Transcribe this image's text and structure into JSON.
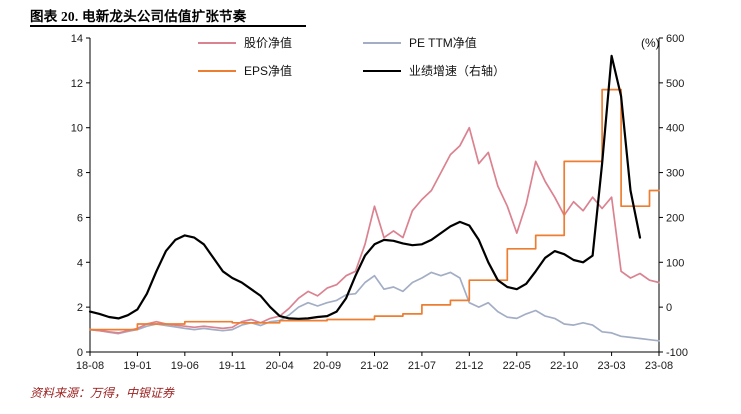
{
  "title": "图表 20. 电新龙头公司估值扩张节奏",
  "footer": {
    "text": "资料来源：万得，中银证券"
  },
  "chart_data": {
    "type": "line",
    "title": "电新龙头公司估值扩张节奏",
    "x_interval": "monthly",
    "x_ticks": [
      {
        "i": 0,
        "label": "18-08"
      },
      {
        "i": 5,
        "label": "19-01"
      },
      {
        "i": 10,
        "label": "19-06"
      },
      {
        "i": 15,
        "label": "19-11"
      },
      {
        "i": 20,
        "label": "20-04"
      },
      {
        "i": 25,
        "label": "20-09"
      },
      {
        "i": 30,
        "label": "21-02"
      },
      {
        "i": 35,
        "label": "21-07"
      },
      {
        "i": 40,
        "label": "21-12"
      },
      {
        "i": 45,
        "label": "22-05"
      },
      {
        "i": 50,
        "label": "22-10"
      },
      {
        "i": 55,
        "label": "23-03"
      },
      {
        "i": 60,
        "label": "23-08"
      }
    ],
    "left_axis": {
      "range": [
        0,
        14
      ],
      "ticks": [
        0,
        2,
        4,
        6,
        8,
        10,
        12,
        14
      ]
    },
    "right_axis": {
      "range": [
        -100,
        600
      ],
      "ticks": [
        -100,
        0,
        100,
        200,
        300,
        400,
        500,
        600
      ],
      "unit": "(%)"
    },
    "legend_position": "top-inside",
    "grid": false,
    "series": [
      {
        "name": "股价净值",
        "color": "#db8290",
        "axis": "left",
        "width": 1.7,
        "step": false,
        "values": [
          1.0,
          0.95,
          0.9,
          0.85,
          0.95,
          1.05,
          1.25,
          1.35,
          1.25,
          1.2,
          1.15,
          1.1,
          1.15,
          1.1,
          1.05,
          1.1,
          1.35,
          1.45,
          1.3,
          1.5,
          1.6,
          1.95,
          2.4,
          2.7,
          2.5,
          2.85,
          3.0,
          3.4,
          3.6,
          4.8,
          6.5,
          5.1,
          5.4,
          5.1,
          6.3,
          6.8,
          7.2,
          8.0,
          8.8,
          9.2,
          10.0,
          8.4,
          8.9,
          7.4,
          6.5,
          5.3,
          6.6,
          8.5,
          7.6,
          6.9,
          6.1,
          6.7,
          6.3,
          6.9,
          6.4,
          6.9,
          3.6,
          3.3,
          3.5,
          3.2,
          3.1
        ]
      },
      {
        "name": "PE TTM净值",
        "color": "#a3aec5",
        "axis": "left",
        "width": 1.7,
        "step": false,
        "values": [
          1.0,
          0.95,
          0.88,
          0.82,
          0.92,
          1.0,
          1.15,
          1.25,
          1.18,
          1.12,
          1.05,
          1.0,
          1.05,
          1.0,
          0.95,
          1.0,
          1.2,
          1.3,
          1.18,
          1.35,
          1.4,
          1.65,
          2.0,
          2.2,
          2.05,
          2.2,
          2.3,
          2.55,
          2.6,
          3.1,
          3.4,
          2.8,
          2.9,
          2.7,
          3.1,
          3.3,
          3.55,
          3.4,
          3.55,
          3.3,
          2.2,
          2.0,
          2.2,
          1.8,
          1.55,
          1.5,
          1.7,
          1.85,
          1.6,
          1.5,
          1.25,
          1.2,
          1.3,
          1.2,
          0.9,
          0.85,
          0.7,
          0.65,
          0.6,
          0.55,
          0.5
        ]
      },
      {
        "name": "EPS净值",
        "color": "#ed7d31",
        "axis": "left",
        "width": 1.7,
        "step": true,
        "values": [
          1.0,
          1.0,
          1.0,
          1.0,
          1.0,
          1.25,
          1.25,
          1.25,
          1.25,
          1.25,
          1.35,
          1.35,
          1.35,
          1.35,
          1.35,
          1.3,
          1.3,
          1.3,
          1.3,
          1.3,
          1.4,
          1.4,
          1.4,
          1.4,
          1.4,
          1.45,
          1.45,
          1.45,
          1.45,
          1.45,
          1.6,
          1.6,
          1.6,
          1.7,
          1.7,
          2.1,
          2.1,
          2.1,
          2.3,
          2.3,
          3.2,
          3.2,
          3.2,
          3.2,
          4.6,
          4.6,
          4.6,
          5.2,
          5.2,
          5.2,
          8.5,
          8.5,
          8.5,
          8.5,
          11.7,
          11.7,
          6.5,
          6.5,
          6.5,
          7.2,
          7.2
        ]
      },
      {
        "name": "业绩增速（右轴）",
        "color": "#000000",
        "axis": "right",
        "width": 2.2,
        "step": false,
        "values": [
          -10,
          -15,
          -22,
          -25,
          -18,
          -5,
          30,
          80,
          125,
          150,
          160,
          155,
          140,
          110,
          80,
          65,
          55,
          40,
          25,
          0,
          -20,
          -25,
          -26,
          -25,
          -22,
          -20,
          -10,
          20,
          70,
          115,
          140,
          150,
          148,
          142,
          138,
          140,
          150,
          165,
          180,
          190,
          182,
          150,
          100,
          60,
          45,
          40,
          52,
          80,
          110,
          125,
          118,
          105,
          100,
          115,
          320,
          560,
          470,
          260,
          155,
          null,
          null
        ]
      }
    ]
  }
}
